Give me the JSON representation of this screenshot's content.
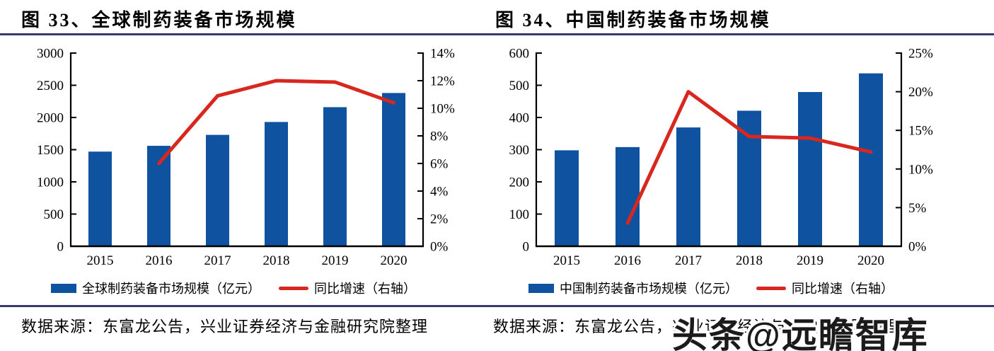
{
  "colors": {
    "bar": "#0E52A0",
    "line": "#D8271E",
    "rule": "#39396B",
    "text": "#000000",
    "watermark_text": "#1B1B1B"
  },
  "watermark": {
    "text": "头条@远瞻智库"
  },
  "chart_data": [
    {
      "type": "bar",
      "title": "图 33、全球制药装备市场规模",
      "categories": [
        "2015",
        "2016",
        "2017",
        "2018",
        "2019",
        "2020"
      ],
      "series": [
        {
          "name": "全球制药装备市场规模（亿元）",
          "kind": "bar",
          "axis": "left",
          "values": [
            1470,
            1560,
            1730,
            1930,
            2160,
            2380
          ]
        },
        {
          "name": "同比增速（右轴）",
          "kind": "line",
          "axis": "right",
          "values": [
            null,
            6.0,
            10.9,
            12.0,
            11.9,
            10.4
          ]
        }
      ],
      "left_axis": {
        "min": 0,
        "max": 3000,
        "ticks": [
          "0",
          "500",
          "1000",
          "1500",
          "2000",
          "2500",
          "3000"
        ]
      },
      "right_axis": {
        "min": 0,
        "max": 14,
        "ticks": [
          "0%",
          "2%",
          "4%",
          "6%",
          "8%",
          "10%",
          "12%",
          "14%"
        ]
      },
      "grid": false,
      "legend_position": "bottom",
      "source": "数据来源：东富龙公告，兴业证券经济与金融研究院整理"
    },
    {
      "type": "bar",
      "title": "图 34、中国制药装备市场规模",
      "categories": [
        "2015",
        "2016",
        "2017",
        "2018",
        "2019",
        "2020"
      ],
      "series": [
        {
          "name": "中国制药装备市场规模（亿元）",
          "kind": "bar",
          "axis": "left",
          "values": [
            298,
            308,
            369,
            421,
            479,
            537
          ]
        },
        {
          "name": "同比增速（右轴）",
          "kind": "line",
          "axis": "right",
          "values": [
            null,
            3.0,
            20.0,
            14.2,
            14.0,
            12.2
          ]
        }
      ],
      "left_axis": {
        "min": 0,
        "max": 600,
        "ticks": [
          "0",
          "100",
          "200",
          "300",
          "400",
          "500",
          "600"
        ]
      },
      "right_axis": {
        "min": 0,
        "max": 25,
        "ticks": [
          "0%",
          "5%",
          "10%",
          "15%",
          "20%",
          "25%"
        ]
      },
      "grid": false,
      "legend_position": "bottom",
      "source": "数据来源：东富龙公告，兴业证券经济与金融研究院整理"
    }
  ]
}
